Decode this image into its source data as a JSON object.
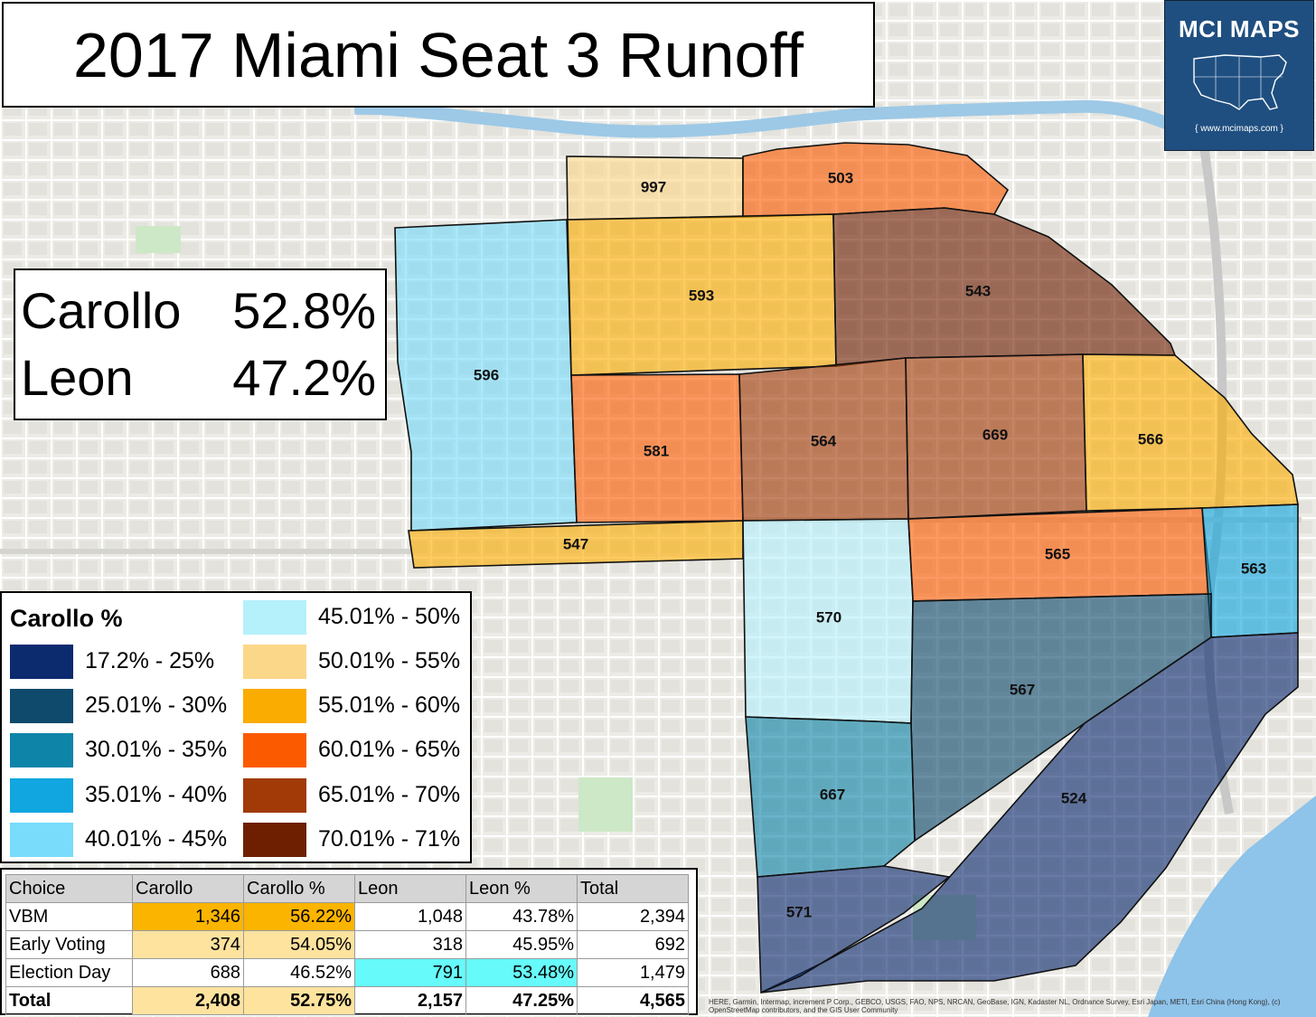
{
  "title": "2017 Miami Seat 3 Runoff",
  "logo": {
    "text": "MCI MAPS",
    "url": "{ www.mcimaps.com }"
  },
  "results": [
    {
      "name": "Carollo",
      "pct": "52.8%"
    },
    {
      "name": "Leon",
      "pct": "47.2%"
    }
  ],
  "legend": {
    "title": "Carollo  %",
    "items": [
      {
        "label": "17.2% - 25%",
        "color": "#0c2a6e"
      },
      {
        "label": "25.01% - 30%",
        "color": "#0f4a6c"
      },
      {
        "label": "30.01% - 35%",
        "color": "#0e84a8"
      },
      {
        "label": "35.01% - 40%",
        "color": "#11a6df"
      },
      {
        "label": "40.01% - 45%",
        "color": "#78dcfa"
      },
      {
        "label": "45.01% - 50%",
        "color": "#b4f1fb"
      },
      {
        "label": "50.01% - 55%",
        "color": "#fbd789"
      },
      {
        "label": "55.01% - 60%",
        "color": "#fbac00"
      },
      {
        "label": "60.01% - 65%",
        "color": "#fb5a00"
      },
      {
        "label": "65.01% - 70%",
        "color": "#a13a06"
      },
      {
        "label": "70.01% - 71%",
        "color": "#6e1f02"
      }
    ]
  },
  "precincts": [
    {
      "id": "997",
      "color": "#fbd789"
    },
    {
      "id": "503",
      "color": "#fb5a00"
    },
    {
      "id": "596",
      "color": "#78dcfa"
    },
    {
      "id": "593",
      "color": "#fbac00"
    },
    {
      "id": "543",
      "color": "#6e1f02"
    },
    {
      "id": "581",
      "color": "#fb5a00"
    },
    {
      "id": "564",
      "color": "#a13a06"
    },
    {
      "id": "669",
      "color": "#a13a06"
    },
    {
      "id": "566",
      "color": "#fbac00"
    },
    {
      "id": "547",
      "color": "#fbac00"
    },
    {
      "id": "570",
      "color": "#b4f1fb"
    },
    {
      "id": "565",
      "color": "#fb5a00"
    },
    {
      "id": "563",
      "color": "#11a6df"
    },
    {
      "id": "567",
      "color": "#0f4a6c"
    },
    {
      "id": "667",
      "color": "#0e84a8"
    },
    {
      "id": "524",
      "color": "#0c2a6e"
    },
    {
      "id": "571",
      "color": "#0c2a6e"
    }
  ],
  "table": {
    "headers": [
      "Choice",
      "Carollo",
      "Carollo %",
      "Leon",
      "Leon %",
      "Total"
    ],
    "rows": [
      {
        "cells": [
          "VBM",
          "1,346",
          "56.22%",
          "1,048",
          "43.78%",
          "2,394"
        ],
        "bg": [
          "",
          "#fbb400",
          "#fbb400",
          "",
          "",
          ""
        ]
      },
      {
        "cells": [
          "Early Voting",
          "374",
          "54.05%",
          "318",
          "45.95%",
          "692"
        ],
        "bg": [
          "",
          "#fde39e",
          "#fde39e",
          "",
          "",
          ""
        ]
      },
      {
        "cells": [
          "Election Day",
          "688",
          "46.52%",
          "791",
          "53.48%",
          "1,479"
        ],
        "bg": [
          "",
          "",
          "",
          "#66fafa",
          "#66fafa",
          ""
        ]
      },
      {
        "cells": [
          "Total",
          "2,408",
          "52.75%",
          "2,157",
          "47.25%",
          "4,565"
        ],
        "bg": [
          "",
          "#fde39e",
          "#fde39e",
          "",
          "",
          ""
        ]
      }
    ]
  },
  "attribution": "HERE, Garmin, Intermap, increment P Corp., GEBCO, USGS, FAO, NPS, NRCAN, GeoBase, IGN, Kadaster NL, Ordnance Survey, Esri Japan, METI, Esri China (Hong Kong), (c) OpenStreetMap contributors, and the GIS User Community"
}
